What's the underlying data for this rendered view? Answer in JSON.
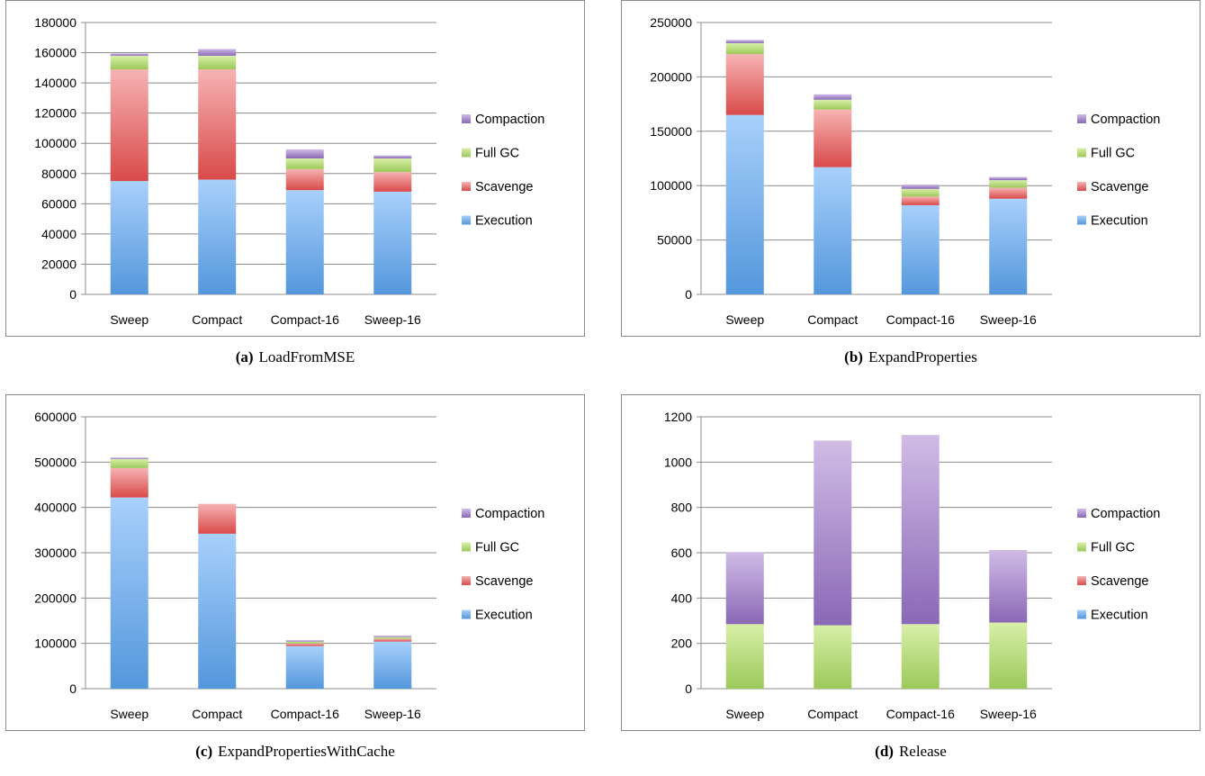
{
  "colors": {
    "Execution": [
      "#5497dc",
      "#a8d0fb"
    ],
    "Scavenge": [
      "#d94a4a",
      "#f6b3b3"
    ],
    "Full GC": [
      "#9cc95a",
      "#d8efa8"
    ],
    "Compaction": [
      "#8a68b6",
      "#d0bce6"
    ],
    "grid": "#8c8c8c",
    "border": "#8c8c8c"
  },
  "legend_placement": "right",
  "chart_data": [
    {
      "type": "bar",
      "stacked": true,
      "caption_letter": "(a)",
      "caption_name": "LoadFromMSE",
      "categories": [
        "Sweep",
        "Compact",
        "Compact-16",
        "Sweep-16"
      ],
      "ylim": [
        0,
        180000
      ],
      "yticks": [
        "0",
        "20000",
        "40000",
        "60000",
        "80000",
        "100000",
        "120000",
        "140000",
        "160000",
        "180000"
      ],
      "grid": true,
      "legend": [
        "Compaction",
        "Full GC",
        "Scavenge",
        "Execution"
      ],
      "series": [
        {
          "name": "Execution",
          "values": [
            75000,
            76000,
            69000,
            68000
          ]
        },
        {
          "name": "Scavenge",
          "values": [
            74000,
            73000,
            14000,
            13000
          ]
        },
        {
          "name": "Full GC",
          "values": [
            9000,
            9000,
            7000,
            9000
          ]
        },
        {
          "name": "Compaction",
          "values": [
            1500,
            4500,
            6000,
            2000
          ]
        }
      ]
    },
    {
      "type": "bar",
      "stacked": true,
      "caption_letter": "(b)",
      "caption_name": "ExpandProperties",
      "categories": [
        "Sweep",
        "Compact",
        "Compact-16",
        "Sweep-16"
      ],
      "ylim": [
        0,
        250000
      ],
      "yticks": [
        "0",
        "50000",
        "100000",
        "150000",
        "200000",
        "250000"
      ],
      "grid": true,
      "legend": [
        "Compaction",
        "Full GC",
        "Scavenge",
        "Execution"
      ],
      "series": [
        {
          "name": "Execution",
          "values": [
            165000,
            117000,
            82000,
            88000
          ]
        },
        {
          "name": "Scavenge",
          "values": [
            56000,
            53000,
            8000,
            10000
          ]
        },
        {
          "name": "Full GC",
          "values": [
            10000,
            9000,
            7000,
            7000
          ]
        },
        {
          "name": "Compaction",
          "values": [
            3000,
            5000,
            4000,
            3000
          ]
        }
      ]
    },
    {
      "type": "bar",
      "stacked": true,
      "caption_letter": "(c)",
      "caption_name": "ExpandPropertiesWithCache",
      "categories": [
        "Sweep",
        "Compact",
        "Compact-16",
        "Sweep-16"
      ],
      "ylim": [
        0,
        600000
      ],
      "yticks": [
        "0",
        "100000",
        "200000",
        "300000",
        "400000",
        "500000",
        "600000"
      ],
      "grid": true,
      "legend": [
        "Compaction",
        "Full GC",
        "Scavenge",
        "Execution"
      ],
      "series": [
        {
          "name": "Execution",
          "values": [
            422000,
            342000,
            94000,
            104000
          ]
        },
        {
          "name": "Scavenge",
          "values": [
            65000,
            66000,
            6000,
            6000
          ]
        },
        {
          "name": "Full GC",
          "values": [
            20000,
            0,
            4000,
            4000
          ]
        },
        {
          "name": "Compaction",
          "values": [
            3000,
            0,
            3000,
            3000
          ]
        }
      ]
    },
    {
      "type": "bar",
      "stacked": true,
      "caption_letter": "(d)",
      "caption_name": "Release",
      "categories": [
        "Sweep",
        "Compact",
        "Compact-16",
        "Sweep-16"
      ],
      "ylim": [
        0,
        1200
      ],
      "yticks": [
        "0",
        "200",
        "400",
        "600",
        "800",
        "1000",
        "1200"
      ],
      "grid": true,
      "legend": [
        "Compaction",
        "Full GC",
        "Scavenge",
        "Execution"
      ],
      "series": [
        {
          "name": "Execution",
          "values": [
            0,
            0,
            0,
            0
          ]
        },
        {
          "name": "Scavenge",
          "values": [
            0,
            0,
            0,
            0
          ]
        },
        {
          "name": "Full GC",
          "values": [
            285,
            280,
            285,
            292
          ]
        },
        {
          "name": "Compaction",
          "values": [
            318,
            815,
            835,
            320
          ]
        }
      ]
    }
  ]
}
